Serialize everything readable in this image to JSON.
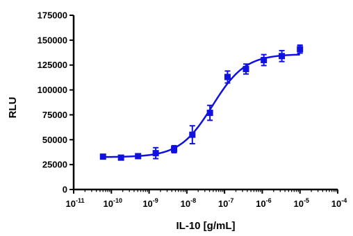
{
  "chart_data": {
    "type": "scatter",
    "title": "",
    "xlabel": "IL-10 [g/mL]",
    "ylabel": "RLU",
    "x_scale": "log10",
    "xlim": [
      1e-11,
      0.0001
    ],
    "ylim": [
      0,
      175000
    ],
    "x_ticks": [
      1e-11,
      1e-10,
      1e-09,
      1e-08,
      1e-07,
      1e-06,
      1e-05,
      0.0001
    ],
    "x_tick_labels": [
      {
        "base": "10",
        "exp": "-11"
      },
      {
        "base": "10",
        "exp": "-10"
      },
      {
        "base": "10",
        "exp": "-9"
      },
      {
        "base": "10",
        "exp": "-8"
      },
      {
        "base": "10",
        "exp": "-7"
      },
      {
        "base": "10",
        "exp": "-6"
      },
      {
        "base": "10",
        "exp": "-5"
      },
      {
        "base": "10",
        "exp": "-4"
      }
    ],
    "y_ticks": [
      0,
      25000,
      50000,
      75000,
      100000,
      125000,
      150000,
      175000
    ],
    "y_tick_labels": [
      "0",
      "25000",
      "50000",
      "75000",
      "100000",
      "125000",
      "150000",
      "175000"
    ],
    "grid": false,
    "legend": "none",
    "series": [
      {
        "marker": "square",
        "color": "#1010e0",
        "x": [
          6e-11,
          1.8e-10,
          5.1e-10,
          1.5e-09,
          4.6e-09,
          1.4e-08,
          4.1e-08,
          1.2e-07,
          3.7e-07,
          1.1e-06,
          3.3e-06,
          1e-05
        ],
        "y": [
          33000,
          32000,
          33500,
          36500,
          40500,
          55000,
          77000,
          113000,
          121000,
          130000,
          134000,
          141000
        ],
        "error": [
          1500,
          1500,
          1500,
          5500,
          3500,
          9000,
          7500,
          6000,
          5000,
          5500,
          5500,
          4000
        ]
      }
    ],
    "fit": {
      "type": "4PL",
      "color": "#1010e0",
      "bottom": 32500,
      "top": 136000,
      "ec50": 4.8e-08,
      "hill": 1.0,
      "x_range": [
        6e-11,
        1e-05
      ]
    }
  }
}
